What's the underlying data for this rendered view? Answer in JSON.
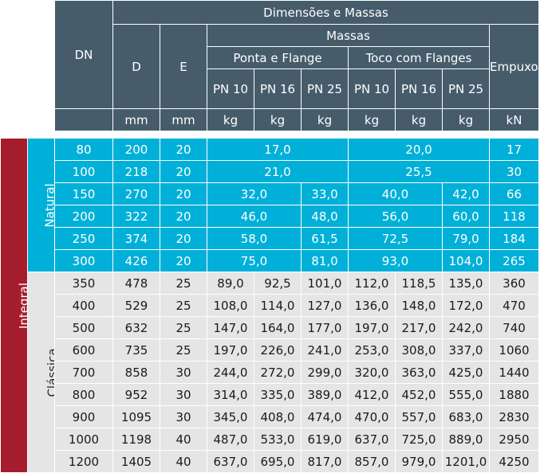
{
  "header": {
    "dim_massas": "Dimensões e Massas",
    "massas": "Massas",
    "ponta_flange": "Ponta e Flange",
    "toco_flanges": "Toco com Flanges",
    "dn": "DN",
    "d": "D",
    "e": "E",
    "empuxo": "Empuxo Axial Máximo Admis-sível",
    "pn10": "PN 10",
    "pn16": "PN 16",
    "pn25": "PN 25"
  },
  "units": {
    "d": "mm",
    "e": "mm",
    "pf10": "kg",
    "pf16": "kg",
    "pf25": "kg",
    "tc10": "kg",
    "tc16": "kg",
    "tc25": "kg",
    "empuxo": "kN"
  },
  "groups": {
    "integral": "Integral",
    "natural": "Natural",
    "classica": "Clássica"
  },
  "natural_rows": [
    {
      "dn": "80",
      "d": "200",
      "e": "20",
      "pf_all": "17,0",
      "tc_all": "20,0",
      "empuxo": "17"
    },
    {
      "dn": "100",
      "d": "218",
      "e": "20",
      "pf_all": "21,0",
      "tc_all": "25,5",
      "empuxo": "30"
    },
    {
      "dn": "150",
      "d": "270",
      "e": "20",
      "pf_1016": "32,0",
      "pf25": "33,0",
      "tc_1016": "40,0",
      "tc25": "42,0",
      "empuxo": "66"
    },
    {
      "dn": "200",
      "d": "322",
      "e": "20",
      "pf_1016": "46,0",
      "pf25": "48,0",
      "tc_1016": "56,0",
      "tc25": "60,0",
      "empuxo": "118"
    },
    {
      "dn": "250",
      "d": "374",
      "e": "20",
      "pf_1016": "58,0",
      "pf25": "61,5",
      "tc_1016": "72,5",
      "tc25": "79,0",
      "empuxo": "184"
    },
    {
      "dn": "300",
      "d": "426",
      "e": "20",
      "pf_1016": "75,0",
      "pf25": "81,0",
      "tc_1016": "93,0",
      "tc25": "104,0",
      "empuxo": "265"
    }
  ],
  "classica_rows": [
    {
      "dn": "350",
      "d": "478",
      "e": "25",
      "pf10": "89,0",
      "pf16": "92,5",
      "pf25": "101,0",
      "tc10": "112,0",
      "tc16": "118,5",
      "tc25": "135,0",
      "empuxo": "360"
    },
    {
      "dn": "400",
      "d": "529",
      "e": "25",
      "pf10": "108,0",
      "pf16": "114,0",
      "pf25": "127,0",
      "tc10": "136,0",
      "tc16": "148,0",
      "tc25": "172,0",
      "empuxo": "470"
    },
    {
      "dn": "500",
      "d": "632",
      "e": "25",
      "pf10": "147,0",
      "pf16": "164,0",
      "pf25": "177,0",
      "tc10": "197,0",
      "tc16": "217,0",
      "tc25": "242,0",
      "empuxo": "740"
    },
    {
      "dn": "600",
      "d": "735",
      "e": "25",
      "pf10": "197,0",
      "pf16": "226,0",
      "pf25": "241,0",
      "tc10": "253,0",
      "tc16": "308,0",
      "tc25": "337,0",
      "empuxo": "1060"
    },
    {
      "dn": "700",
      "d": "858",
      "e": "30",
      "pf10": "244,0",
      "pf16": "272,0",
      "pf25": "299,0",
      "tc10": "320,0",
      "tc16": "363,0",
      "tc25": "425,0",
      "empuxo": "1440"
    },
    {
      "dn": "800",
      "d": "952",
      "e": "30",
      "pf10": "314,0",
      "pf16": "335,0",
      "pf25": "389,0",
      "tc10": "412,0",
      "tc16": "452,0",
      "tc25": "555,0",
      "empuxo": "1880"
    },
    {
      "dn": "900",
      "d": "1095",
      "e": "30",
      "pf10": "345,0",
      "pf16": "408,0",
      "pf25": "474,0",
      "tc10": "470,0",
      "tc16": "557,0",
      "tc25": "683,0",
      "empuxo": "2830"
    },
    {
      "dn": "1000",
      "d": "1198",
      "e": "40",
      "pf10": "487,0",
      "pf16": "533,0",
      "pf25": "619,0",
      "tc10": "637,0",
      "tc16": "725,0",
      "tc25": "889,0",
      "empuxo": "2950"
    },
    {
      "dn": "1200",
      "d": "1405",
      "e": "40",
      "pf10": "637,0",
      "pf16": "695,0",
      "pf25": "817,0",
      "tc10": "857,0",
      "tc16": "979,0",
      "tc25": "1201,0",
      "empuxo": "4250"
    }
  ],
  "colors": {
    "header_bg": "#465c6b",
    "natural_bg": "#00b0d8",
    "classica_bg": "#e5e5e5",
    "integral_bg": "#a51d2d"
  }
}
